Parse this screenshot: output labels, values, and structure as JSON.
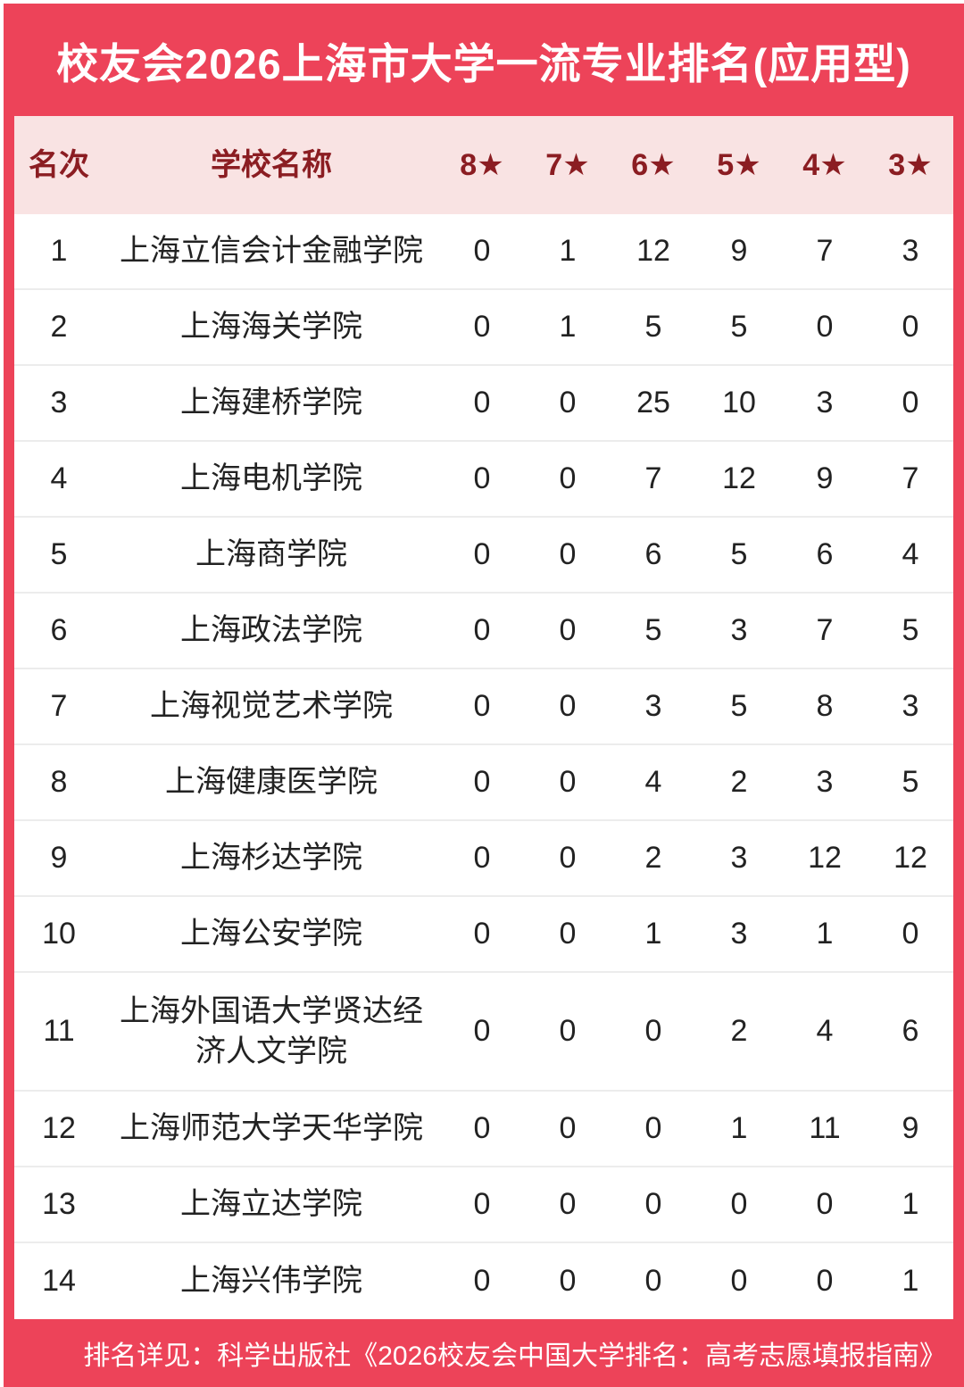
{
  "title": "校友会2026上海市大学一流专业排名(应用型)",
  "footer": "排名详见：科学出版社《2026校友会中国大学排名：高考志愿填报指南》",
  "colors": {
    "accent_red": "#ED4359",
    "header_pink": "#F9E3E3",
    "header_text_maroon": "#8B1D22",
    "body_text": "#222222",
    "separator": "#ECECEC"
  },
  "table": {
    "headers": {
      "rank": "名次",
      "school": "学校名称",
      "stars": [
        "8★",
        "7★",
        "6★",
        "5★",
        "4★",
        "3★"
      ]
    },
    "rows": [
      {
        "rank": "1",
        "school": "上海立信会计金融学院",
        "values": [
          "0",
          "1",
          "12",
          "9",
          "7",
          "3"
        ]
      },
      {
        "rank": "2",
        "school": "上海海关学院",
        "values": [
          "0",
          "1",
          "5",
          "5",
          "0",
          "0"
        ]
      },
      {
        "rank": "3",
        "school": "上海建桥学院",
        "values": [
          "0",
          "0",
          "25",
          "10",
          "3",
          "0"
        ]
      },
      {
        "rank": "4",
        "school": "上海电机学院",
        "values": [
          "0",
          "0",
          "7",
          "12",
          "9",
          "7"
        ]
      },
      {
        "rank": "5",
        "school": "上海商学院",
        "values": [
          "0",
          "0",
          "6",
          "5",
          "6",
          "4"
        ]
      },
      {
        "rank": "6",
        "school": "上海政法学院",
        "values": [
          "0",
          "0",
          "5",
          "3",
          "7",
          "5"
        ]
      },
      {
        "rank": "7",
        "school": "上海视觉艺术学院",
        "values": [
          "0",
          "0",
          "3",
          "5",
          "8",
          "3"
        ]
      },
      {
        "rank": "8",
        "school": "上海健康医学院",
        "values": [
          "0",
          "0",
          "4",
          "2",
          "3",
          "5"
        ]
      },
      {
        "rank": "9",
        "school": "上海杉达学院",
        "values": [
          "0",
          "0",
          "2",
          "3",
          "12",
          "12"
        ]
      },
      {
        "rank": "10",
        "school": "上海公安学院",
        "values": [
          "0",
          "0",
          "1",
          "3",
          "1",
          "0"
        ]
      },
      {
        "rank": "11",
        "school": "上海外国语大学贤达经济人文学院",
        "values": [
          "0",
          "0",
          "0",
          "2",
          "4",
          "6"
        ]
      },
      {
        "rank": "12",
        "school": "上海师范大学天华学院",
        "values": [
          "0",
          "0",
          "0",
          "1",
          "11",
          "9"
        ]
      },
      {
        "rank": "13",
        "school": "上海立达学院",
        "values": [
          "0",
          "0",
          "0",
          "0",
          "0",
          "1"
        ]
      },
      {
        "rank": "14",
        "school": "上海兴伟学院",
        "values": [
          "0",
          "0",
          "0",
          "0",
          "0",
          "1"
        ]
      }
    ]
  },
  "chart_data": {
    "type": "table",
    "title": "校友会2026上海市大学一流专业排名(应用型)",
    "columns": [
      "名次",
      "学校名称",
      "8★",
      "7★",
      "6★",
      "5★",
      "4★",
      "3★"
    ],
    "rows": [
      [
        1,
        "上海立信会计金融学院",
        0,
        1,
        12,
        9,
        7,
        3
      ],
      [
        2,
        "上海海关学院",
        0,
        1,
        5,
        5,
        0,
        0
      ],
      [
        3,
        "上海建桥学院",
        0,
        0,
        25,
        10,
        3,
        0
      ],
      [
        4,
        "上海电机学院",
        0,
        0,
        7,
        12,
        9,
        7
      ],
      [
        5,
        "上海商学院",
        0,
        0,
        6,
        5,
        6,
        4
      ],
      [
        6,
        "上海政法学院",
        0,
        0,
        5,
        3,
        7,
        5
      ],
      [
        7,
        "上海视觉艺术学院",
        0,
        0,
        3,
        5,
        8,
        3
      ],
      [
        8,
        "上海健康医学院",
        0,
        0,
        4,
        2,
        3,
        5
      ],
      [
        9,
        "上海杉达学院",
        0,
        0,
        2,
        3,
        12,
        12
      ],
      [
        10,
        "上海公安学院",
        0,
        0,
        1,
        3,
        1,
        0
      ],
      [
        11,
        "上海外国语大学贤达经济人文学院",
        0,
        0,
        0,
        2,
        4,
        6
      ],
      [
        12,
        "上海师范大学天华学院",
        0,
        0,
        0,
        1,
        11,
        9
      ],
      [
        13,
        "上海立达学院",
        0,
        0,
        0,
        0,
        0,
        1
      ],
      [
        14,
        "上海兴伟学院",
        0,
        0,
        0,
        0,
        0,
        1
      ]
    ],
    "footnote": "排名详见：科学出版社《2026校友会中国大学排名：高考志愿填报指南》"
  }
}
